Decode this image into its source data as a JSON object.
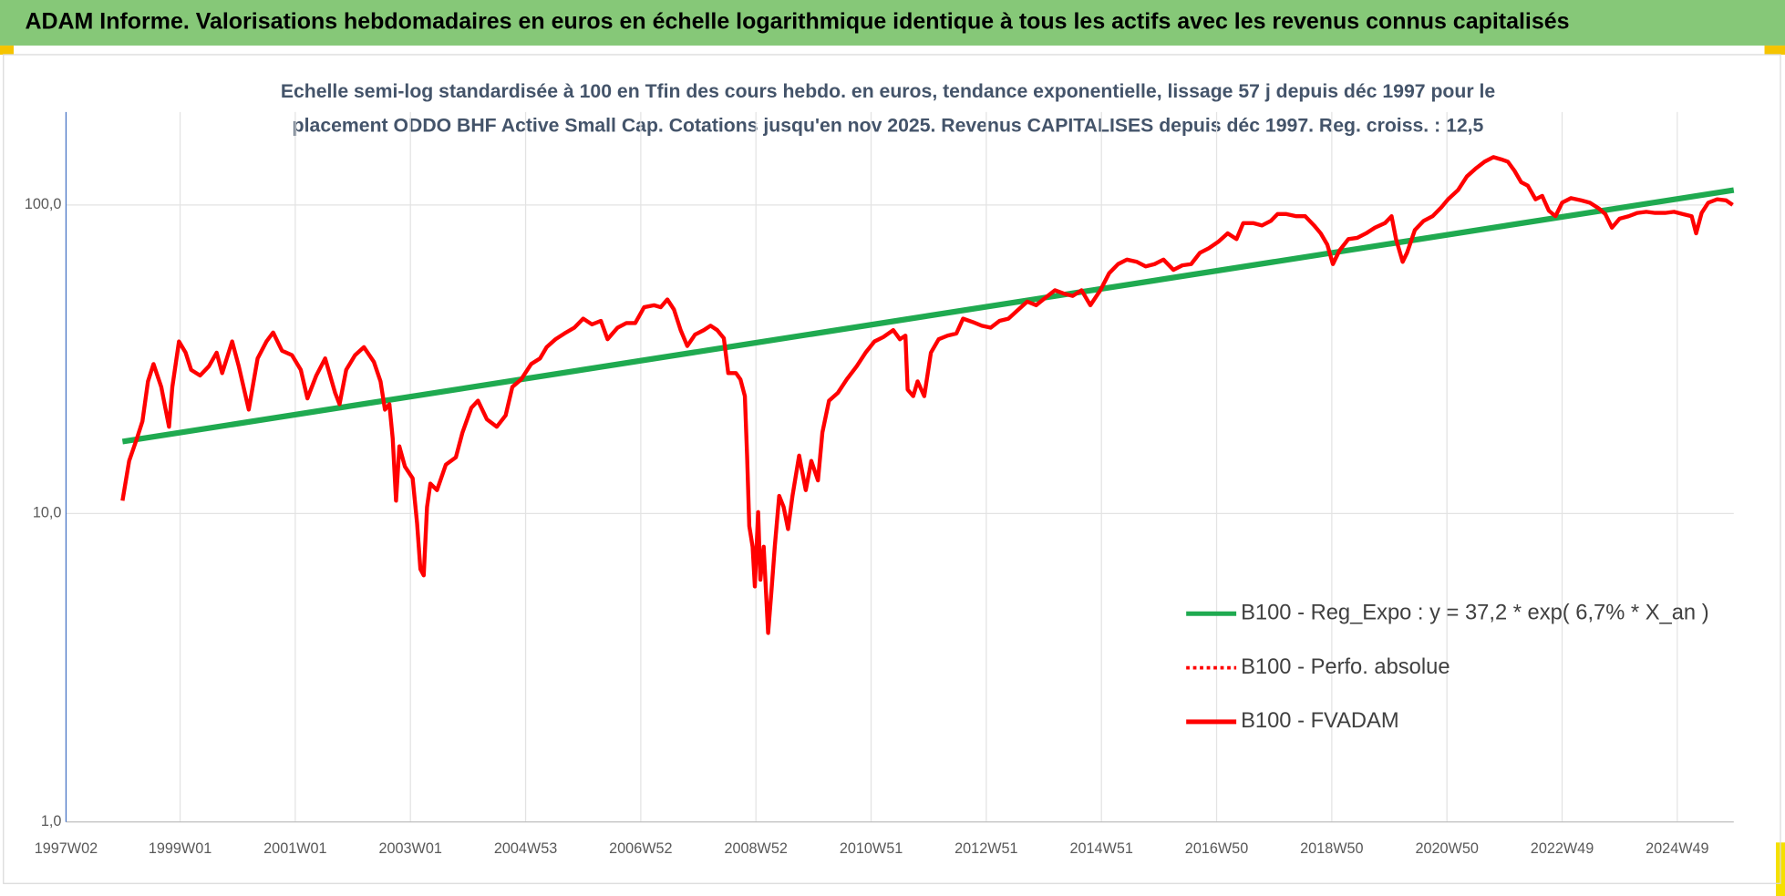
{
  "header": {
    "title": "ADAM Informe. Valorisations hebdomadaires en euros en échelle logarithmique identique à tous les actifs avec les revenus connus capitalisés"
  },
  "chart_data": {
    "type": "line",
    "title": [
      "Echelle semi-log standardisée à 100 en Tfin des cours hebdo. en euros, tendance exponentielle, lissage 57 j depuis déc 1997 pour le",
      "placement ODDO BHF Active Small Cap. Cotations jusqu'en nov 2025. Revenus CAPITALISES depuis déc 1997. Reg. croiss. : 12,5"
    ],
    "log_scale": true,
    "grid": true,
    "ylim": [
      1,
      200
    ],
    "yticks": [
      {
        "value": 1,
        "label": "1,0"
      },
      {
        "value": 10,
        "label": "10,0"
      },
      {
        "value": 100,
        "label": "100,0"
      }
    ],
    "xlim": [
      0,
      1506
    ],
    "xticks": [
      {
        "value": 0,
        "label": "1997W02"
      },
      {
        "value": 103,
        "label": "1999W01"
      },
      {
        "value": 207,
        "label": "2001W01"
      },
      {
        "value": 311,
        "label": "2003W01"
      },
      {
        "value": 415,
        "label": "2004W53"
      },
      {
        "value": 519,
        "label": "2006W52"
      },
      {
        "value": 623,
        "label": "2008W52"
      },
      {
        "value": 727,
        "label": "2010W51"
      },
      {
        "value": 831,
        "label": "2012W51"
      },
      {
        "value": 935,
        "label": "2014W51"
      },
      {
        "value": 1039,
        "label": "2016W50"
      },
      {
        "value": 1143,
        "label": "2018W50"
      },
      {
        "value": 1247,
        "label": "2020W50"
      },
      {
        "value": 1351,
        "label": "2022W49"
      },
      {
        "value": 1455,
        "label": "2024W49"
      }
    ],
    "series": [
      {
        "name": "B100 - Reg_Expo : y = 37,2 * exp( 6,7% *  X_an )",
        "color": "#1faa50",
        "dash": false,
        "x": [
          51,
          1506
        ],
        "values": [
          17.1,
          111.7
        ]
      },
      {
        "name": "B100 - Perfo. absolue",
        "color": "#ff0000",
        "dash": true,
        "x": [],
        "values": []
      },
      {
        "name": "B100 - FVADAM",
        "color": "#ff0000",
        "dash": false,
        "x": [
          51,
          57,
          64,
          69,
          74,
          79,
          86,
          93,
          96,
          102,
          108,
          113,
          121,
          129,
          136,
          141,
          150,
          156,
          165,
          173,
          181,
          187,
          195,
          204,
          212,
          218,
          226,
          234,
          243,
          247,
          253,
          261,
          269,
          278,
          284,
          288,
          292,
          295,
          298,
          301,
          306,
          313,
          317,
          320,
          323,
          326,
          329,
          335,
          343,
          352,
          358,
          366,
          372,
          380,
          389,
          397,
          403,
          411,
          420,
          428,
          434,
          442,
          450,
          459,
          467,
          475,
          483,
          489,
          498,
          506,
          514,
          522,
          531,
          537,
          543,
          549,
          555,
          561,
          568,
          576,
          582,
          588,
          594,
          598,
          605,
          609,
          613,
          615,
          617,
          620,
          622,
          625,
          627,
          630,
          634,
          637,
          640,
          644,
          648,
          652,
          656,
          662,
          668,
          673,
          679,
          683,
          689,
          697,
          705,
          714,
          722,
          730,
          738,
          747,
          753,
          758,
          760,
          765,
          769,
          775,
          781,
          788,
          796,
          804,
          810,
          819,
          827,
          835,
          843,
          851,
          860,
          868,
          876,
          884,
          893,
          901,
          909,
          917,
          925,
          934,
          942,
          950,
          958,
          967,
          975,
          983,
          991,
          1000,
          1008,
          1016,
          1024,
          1032,
          1041,
          1049,
          1057,
          1063,
          1072,
          1080,
          1088,
          1094,
          1102,
          1111,
          1119,
          1127,
          1133,
          1139,
          1144,
          1150,
          1158,
          1166,
          1174,
          1182,
          1191,
          1197,
          1201,
          1207,
          1211,
          1218,
          1226,
          1234,
          1242,
          1248,
          1257,
          1265,
          1273,
          1281,
          1289,
          1296,
          1302,
          1308,
          1314,
          1320,
          1327,
          1333,
          1339,
          1345,
          1351,
          1359,
          1368,
          1376,
          1384,
          1390,
          1396,
          1403,
          1411,
          1419,
          1427,
          1435,
          1444,
          1452,
          1460,
          1468,
          1472,
          1477,
          1483,
          1491,
          1499,
          1505
        ],
        "values": [
          11.0,
          14.8,
          17.5,
          19.9,
          26.8,
          30.5,
          25.7,
          19.1,
          25.7,
          36.1,
          33.2,
          29.2,
          28.0,
          30.0,
          33.2,
          28.5,
          36.1,
          30.0,
          21.7,
          31.8,
          36.1,
          38.6,
          33.7,
          32.6,
          29.2,
          23.6,
          28.0,
          31.8,
          24.6,
          22.6,
          29.2,
          32.6,
          34.6,
          31.0,
          26.8,
          21.7,
          22.6,
          17.5,
          11.0,
          16.5,
          14.2,
          13.0,
          9.3,
          6.6,
          6.3,
          10.5,
          12.5,
          11.9,
          14.4,
          15.2,
          18.3,
          22.0,
          23.2,
          20.2,
          19.1,
          20.8,
          25.7,
          27.2,
          30.5,
          31.8,
          34.6,
          36.7,
          38.3,
          40.0,
          42.8,
          41.0,
          42.1,
          36.7,
          40.0,
          41.4,
          41.4,
          46.6,
          47.3,
          46.6,
          49.4,
          45.8,
          39.3,
          34.9,
          38.0,
          39.3,
          40.6,
          39.3,
          37.0,
          28.5,
          28.5,
          27.2,
          24.0,
          15.4,
          9.1,
          7.8,
          5.8,
          10.1,
          6.1,
          7.8,
          4.1,
          5.6,
          7.8,
          11.4,
          10.5,
          8.9,
          11.4,
          15.4,
          11.9,
          14.8,
          12.8,
          18.3,
          23.2,
          24.6,
          27.2,
          30.0,
          33.2,
          36.1,
          37.3,
          39.3,
          36.7,
          37.7,
          25.2,
          24.0,
          26.8,
          24.0,
          33.2,
          36.7,
          37.7,
          38.3,
          42.8,
          41.7,
          40.6,
          40.0,
          42.1,
          42.8,
          45.8,
          48.6,
          47.3,
          49.9,
          52.9,
          51.6,
          50.7,
          52.9,
          47.3,
          52.9,
          60.1,
          64.3,
          66.5,
          65.4,
          63.2,
          64.3,
          66.5,
          61.6,
          63.7,
          64.3,
          70.0,
          72.4,
          76.2,
          80.9,
          77.5,
          87.3,
          87.3,
          85.8,
          88.8,
          93.4,
          93.4,
          91.9,
          91.9,
          85.8,
          80.9,
          74.3,
          64.3,
          71.2,
          77.5,
          78.2,
          80.9,
          84.4,
          87.3,
          91.9,
          77.5,
          65.4,
          70.0,
          82.9,
          88.8,
          91.9,
          98.3,
          104.3,
          111.7,
          123.7,
          131.2,
          138.1,
          142.9,
          140.5,
          138.1,
          129.0,
          118.5,
          115.5,
          104.3,
          107.0,
          95.8,
          91.9,
          101.7,
          105.2,
          103.5,
          101.7,
          97.5,
          93.4,
          84.4,
          90.3,
          91.9,
          94.2,
          95.0,
          94.2,
          94.2,
          95.0,
          93.4,
          91.9,
          80.9,
          94.2,
          101.7,
          104.3,
          103.5,
          100.0
        ]
      }
    ]
  }
}
